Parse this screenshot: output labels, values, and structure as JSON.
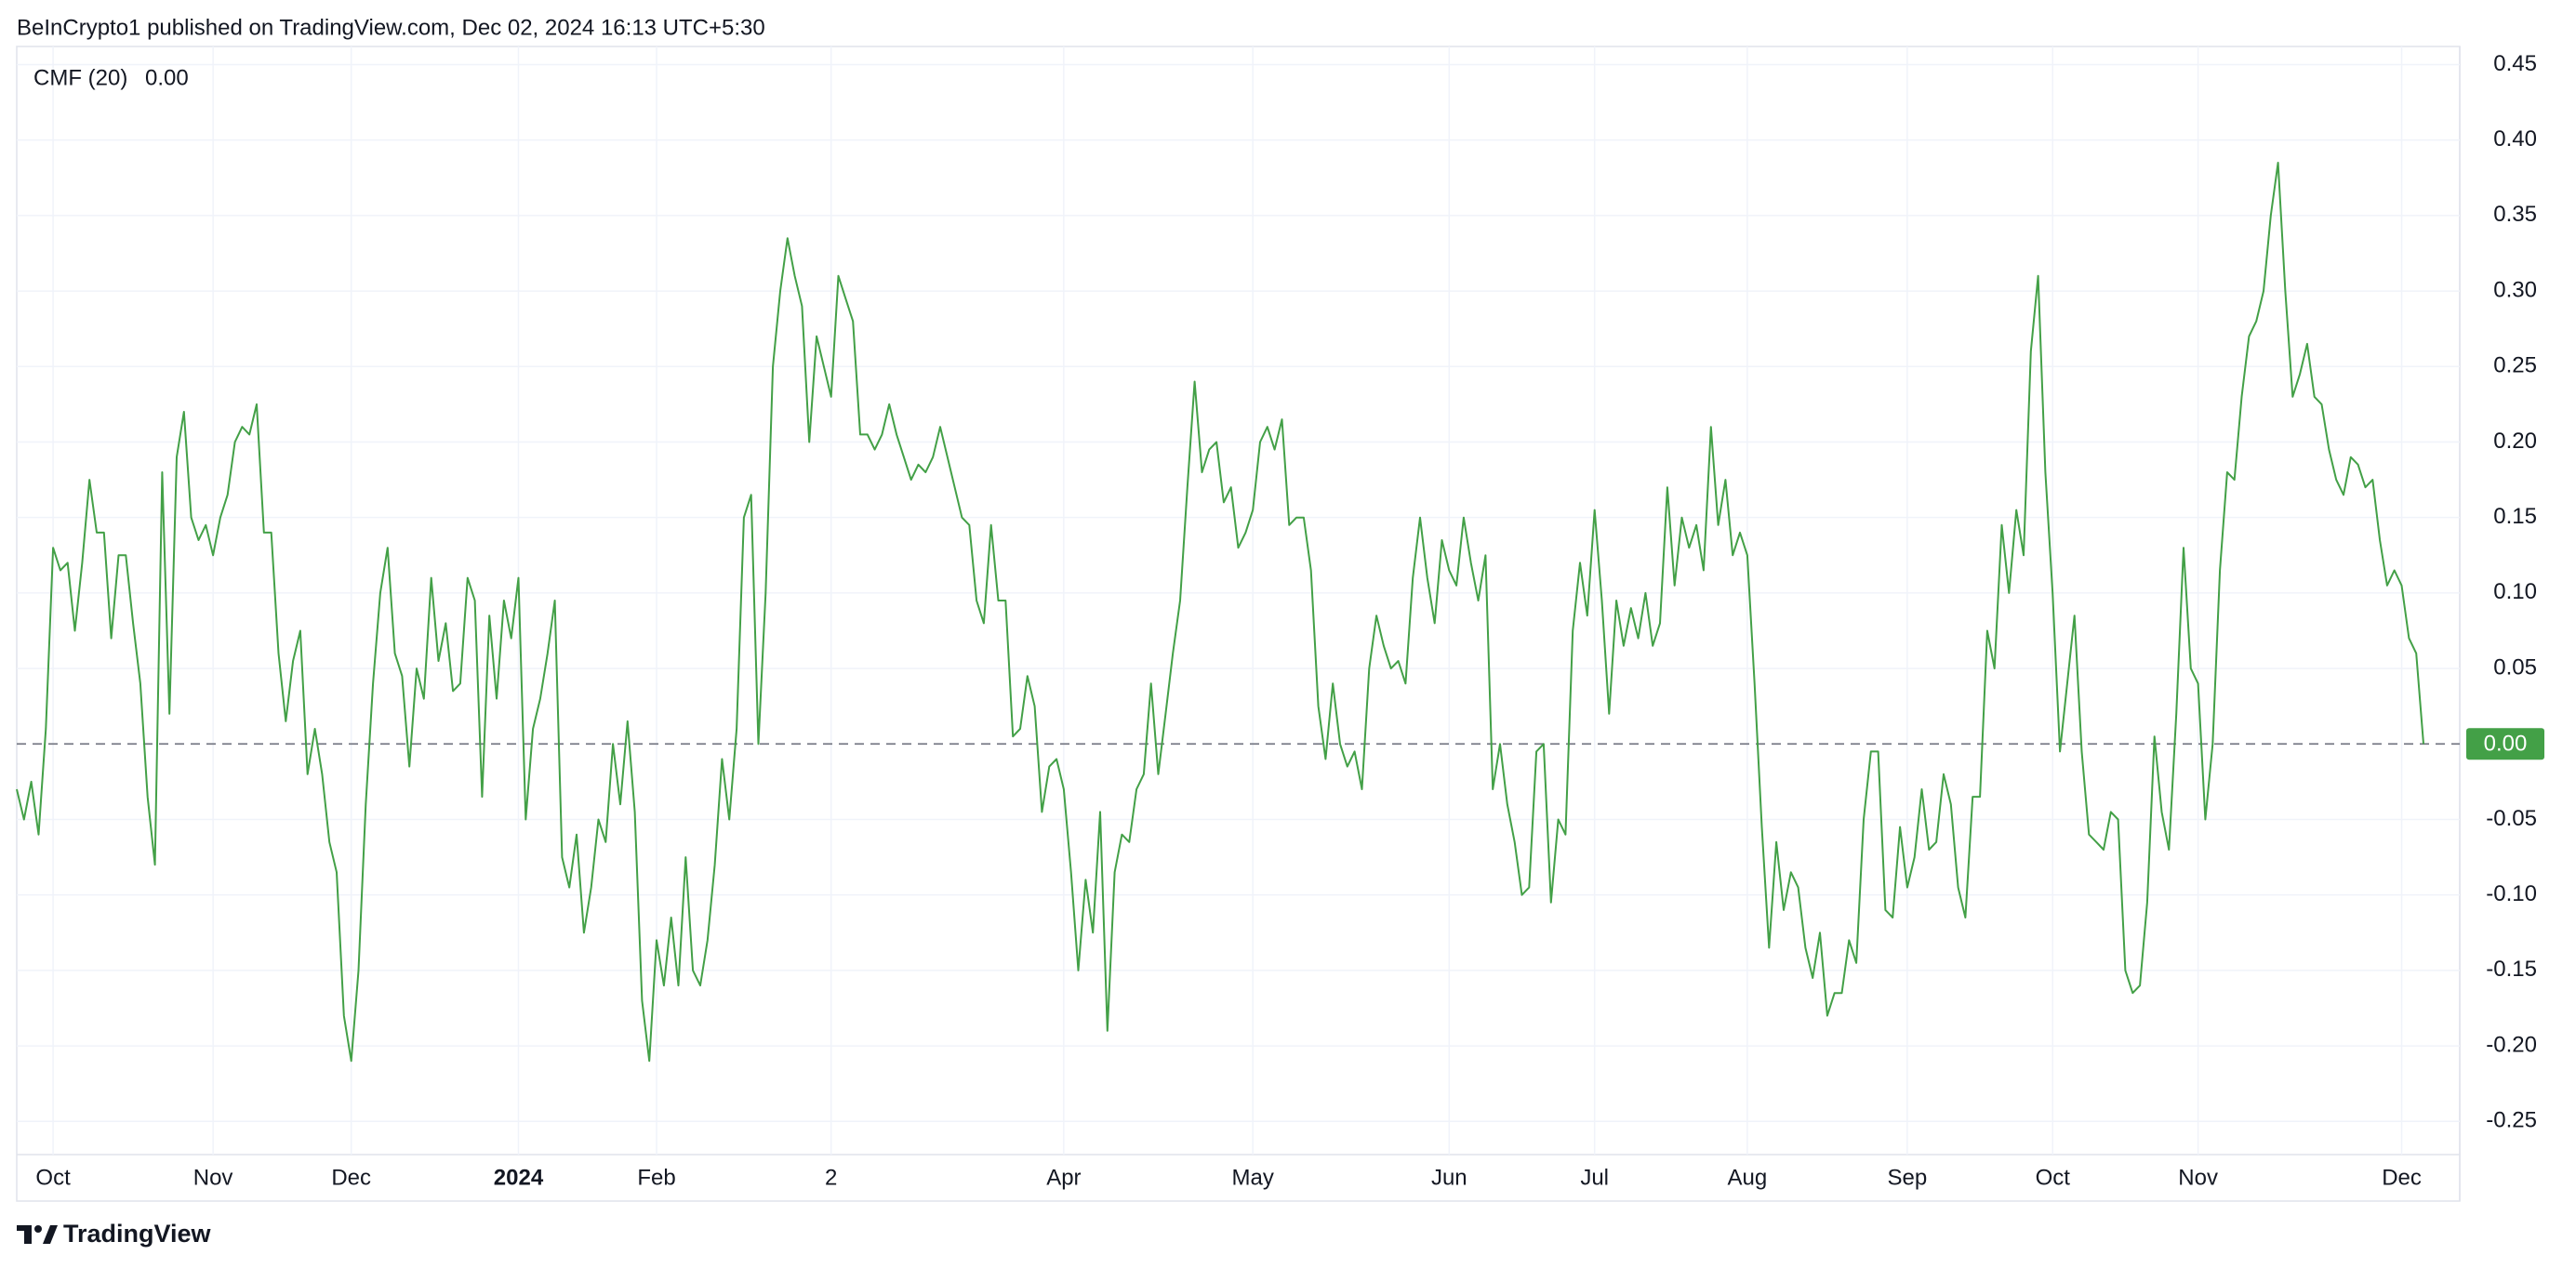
{
  "header": "BeInCrypto1 published on TradingView.com, Dec 02, 2024 16:13 UTC+5:30",
  "footer": "TradingView",
  "chart_data": {
    "type": "line",
    "categories": [
      null,
      null,
      null,
      null,
      null,
      "Oct",
      null,
      null,
      null,
      null,
      null,
      null,
      null,
      null,
      null,
      null,
      null,
      null,
      null,
      null,
      null,
      null,
      null,
      null,
      null,
      null,
      null,
      "Nov",
      null,
      null,
      null,
      null,
      null,
      null,
      null,
      null,
      null,
      null,
      null,
      null,
      null,
      null,
      null,
      null,
      null,
      null,
      "Dec",
      null,
      null,
      null,
      null,
      null,
      null,
      null,
      null,
      null,
      null,
      null,
      null,
      null,
      null,
      null,
      null,
      null,
      null,
      null,
      null,
      null,
      null,
      "2024",
      null,
      null,
      null,
      null,
      null,
      null,
      null,
      null,
      null,
      null,
      null,
      null,
      null,
      null,
      null,
      null,
      null,
      null,
      "Feb",
      null,
      null,
      null,
      null,
      null,
      null,
      null,
      null,
      null,
      null,
      null,
      null,
      null,
      null,
      null,
      null,
      null,
      null,
      null,
      null,
      null,
      null,
      null,
      "2",
      null,
      null,
      null,
      null,
      null,
      null,
      null,
      null,
      null,
      null,
      null,
      null,
      null,
      null,
      null,
      null,
      null,
      null,
      null,
      null,
      null,
      null,
      null,
      null,
      null,
      null,
      null,
      null,
      null,
      null,
      null,
      "Apr",
      null,
      null,
      null,
      null,
      null,
      null,
      null,
      null,
      null,
      null,
      null,
      null,
      null,
      null,
      null,
      null,
      null,
      null,
      null,
      null,
      null,
      null,
      null,
      null,
      null,
      "May",
      null,
      null,
      null,
      null,
      null,
      null,
      null,
      null,
      null,
      null,
      null,
      null,
      null,
      null,
      null,
      null,
      null,
      null,
      null,
      null,
      null,
      null,
      null,
      null,
      null,
      null,
      "Jun",
      null,
      null,
      null,
      null,
      null,
      null,
      null,
      null,
      null,
      null,
      null,
      null,
      null,
      null,
      null,
      null,
      null,
      null,
      null,
      "Jul",
      null,
      null,
      null,
      null,
      null,
      null,
      null,
      null,
      null,
      null,
      null,
      null,
      null,
      null,
      null,
      null,
      null,
      null,
      null,
      null,
      "Aug",
      null,
      null,
      null,
      null,
      null,
      null,
      null,
      null,
      null,
      null,
      null,
      null,
      null,
      null,
      null,
      null,
      null,
      null,
      null,
      null,
      null,
      "Sep",
      null,
      null,
      null,
      null,
      null,
      null,
      null,
      null,
      null,
      null,
      null,
      null,
      null,
      null,
      null,
      null,
      null,
      null,
      null,
      "Oct",
      null,
      null,
      null,
      null,
      null,
      null,
      null,
      null,
      null,
      null,
      null,
      null,
      null,
      null,
      null,
      null,
      null,
      null,
      null,
      "Nov",
      null,
      null,
      null,
      null,
      null,
      null,
      null,
      null,
      null,
      null,
      null,
      null,
      null,
      null,
      null,
      null,
      null,
      null,
      null,
      null,
      null,
      null,
      null,
      null,
      null,
      null,
      null,
      "Dec",
      null,
      null,
      null
    ],
    "series": [
      {
        "name": "CMF (20)",
        "color": "#43a047",
        "current_value_label": "0.00",
        "values": [
          -0.03,
          -0.05,
          -0.025,
          -0.06,
          0.01,
          0.13,
          0.115,
          0.12,
          0.075,
          0.12,
          0.175,
          0.14,
          0.14,
          0.07,
          0.125,
          0.125,
          0.08,
          0.04,
          -0.035,
          -0.08,
          0.18,
          0.02,
          0.19,
          0.22,
          0.15,
          0.135,
          0.145,
          0.125,
          0.15,
          0.165,
          0.2,
          0.21,
          0.205,
          0.225,
          0.14,
          0.14,
          0.06,
          0.015,
          0.055,
          0.075,
          -0.02,
          0.01,
          -0.02,
          -0.065,
          -0.085,
          -0.18,
          -0.21,
          -0.15,
          -0.04,
          0.04,
          0.1,
          0.13,
          0.06,
          0.045,
          -0.015,
          0.05,
          0.03,
          0.11,
          0.055,
          0.08,
          0.035,
          0.04,
          0.11,
          0.095,
          -0.035,
          0.085,
          0.03,
          0.095,
          0.07,
          0.11,
          -0.05,
          0.01,
          0.03,
          0.06,
          0.095,
          -0.075,
          -0.095,
          -0.06,
          -0.125,
          -0.095,
          -0.05,
          -0.065,
          0.0,
          -0.04,
          0.015,
          -0.045,
          -0.17,
          -0.21,
          -0.13,
          -0.16,
          -0.115,
          -0.16,
          -0.075,
          -0.15,
          -0.16,
          -0.13,
          -0.08,
          -0.01,
          -0.05,
          0.01,
          0.15,
          0.165,
          0.0,
          0.1,
          0.25,
          0.3,
          0.335,
          0.31,
          0.29,
          0.2,
          0.27,
          0.25,
          0.23,
          0.31,
          0.295,
          0.28,
          0.205,
          0.205,
          0.195,
          0.205,
          0.225,
          0.205,
          0.19,
          0.175,
          0.185,
          0.18,
          0.19,
          0.21,
          0.19,
          0.17,
          0.15,
          0.145,
          0.095,
          0.08,
          0.145,
          0.095,
          0.095,
          0.005,
          0.01,
          0.045,
          0.025,
          -0.045,
          -0.015,
          -0.01,
          -0.03,
          -0.085,
          -0.15,
          -0.09,
          -0.125,
          -0.045,
          -0.19,
          -0.085,
          -0.06,
          -0.065,
          -0.03,
          -0.02,
          0.04,
          -0.02,
          0.02,
          0.06,
          0.095,
          0.17,
          0.24,
          0.18,
          0.195,
          0.2,
          0.16,
          0.17,
          0.13,
          0.14,
          0.155,
          0.2,
          0.21,
          0.195,
          0.215,
          0.145,
          0.15,
          0.15,
          0.115,
          0.025,
          -0.01,
          0.04,
          0.0,
          -0.015,
          -0.005,
          -0.03,
          0.05,
          0.085,
          0.065,
          0.05,
          0.055,
          0.04,
          0.11,
          0.15,
          0.11,
          0.08,
          0.135,
          0.115,
          0.105,
          0.15,
          0.12,
          0.095,
          0.125,
          -0.03,
          0.0,
          -0.04,
          -0.065,
          -0.1,
          -0.095,
          -0.005,
          0.0,
          -0.105,
          -0.05,
          -0.06,
          0.075,
          0.12,
          0.085,
          0.155,
          0.095,
          0.02,
          0.095,
          0.065,
          0.09,
          0.07,
          0.1,
          0.065,
          0.08,
          0.17,
          0.105,
          0.15,
          0.13,
          0.145,
          0.115,
          0.21,
          0.145,
          0.175,
          0.125,
          0.14,
          0.125,
          0.04,
          -0.055,
          -0.135,
          -0.065,
          -0.11,
          -0.085,
          -0.095,
          -0.135,
          -0.155,
          -0.125,
          -0.18,
          -0.165,
          -0.165,
          -0.13,
          -0.145,
          -0.05,
          -0.005,
          -0.005,
          -0.11,
          -0.115,
          -0.055,
          -0.095,
          -0.075,
          -0.03,
          -0.07,
          -0.065,
          -0.02,
          -0.04,
          -0.095,
          -0.115,
          -0.035,
          -0.035,
          0.075,
          0.05,
          0.145,
          0.1,
          0.155,
          0.125,
          0.26,
          0.31,
          0.18,
          0.1,
          -0.005,
          0.04,
          0.085,
          -0.005,
          -0.06,
          -0.065,
          -0.07,
          -0.045,
          -0.05,
          -0.15,
          -0.165,
          -0.16,
          -0.105,
          0.005,
          -0.045,
          -0.07,
          0.02,
          0.13,
          0.05,
          0.04,
          -0.05,
          0.0,
          0.115,
          0.18,
          0.175,
          0.23,
          0.27,
          0.28,
          0.3,
          0.35,
          0.385,
          0.3,
          0.23,
          0.245,
          0.265,
          0.23,
          0.225,
          0.195,
          0.175,
          0.165,
          0.19,
          0.185,
          0.17,
          0.175,
          0.135,
          0.105,
          0.115,
          0.105,
          0.07,
          0.06,
          0.0
        ]
      }
    ],
    "ylim": [
      -0.272,
      0.462
    ],
    "yticks": [
      0.45,
      {
        "value": 0.4,
        "label": "0.40"
      },
      0.35,
      {
        "value": 0.3,
        "label": "0.30"
      },
      0.25,
      {
        "value": 0.2,
        "label": "0.20"
      },
      0.15,
      {
        "value": 0.1,
        "label": "0.10"
      },
      0.05,
      -0.05,
      {
        "value": -0.1,
        "label": "-0.10"
      },
      -0.15,
      {
        "value": -0.2,
        "label": "-0.20"
      },
      -0.25
    ],
    "hline": 0,
    "grid": true
  }
}
